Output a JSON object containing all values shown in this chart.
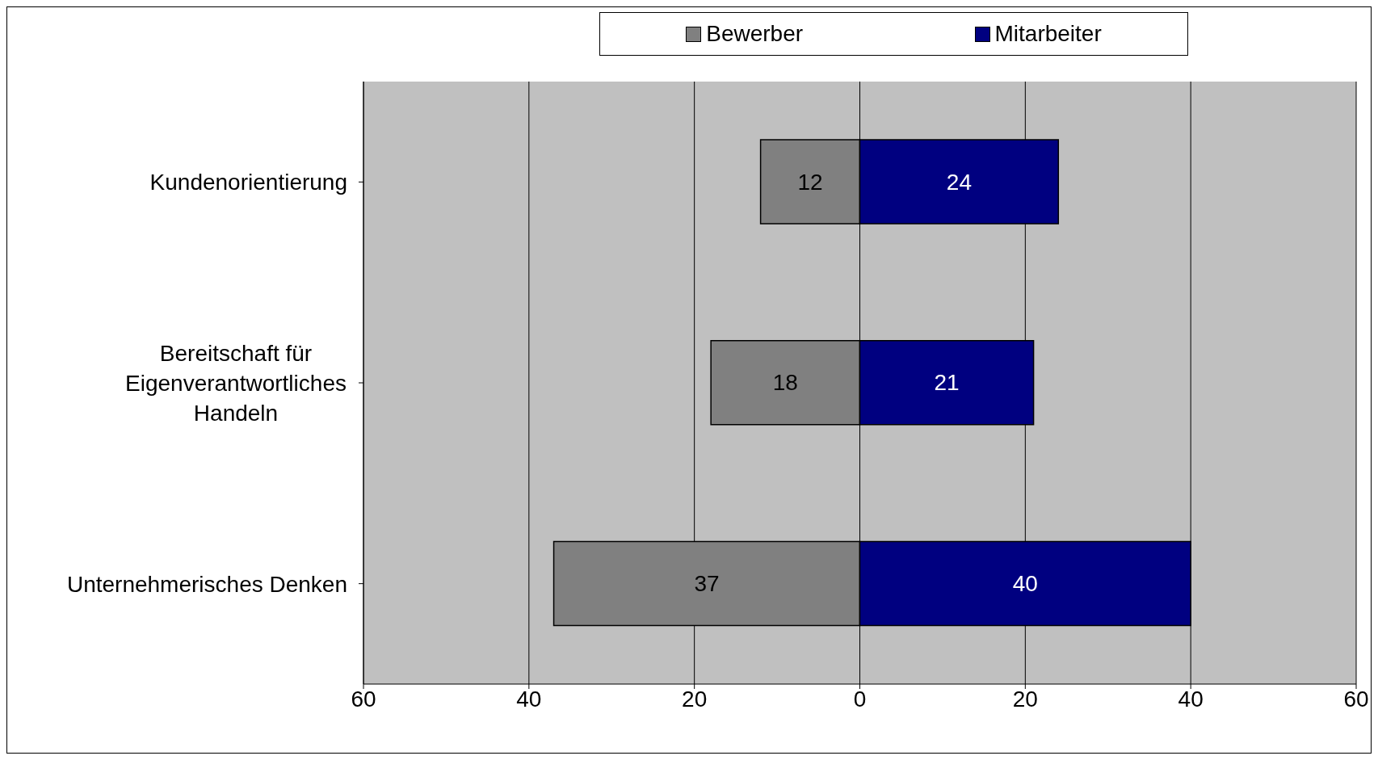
{
  "chart_data": {
    "type": "bar",
    "orientation": "horizontal",
    "categories": [
      "Kundenorientierung",
      "Bereitschaft für Eigenverantwortliches Handeln",
      "Unternehmerisches Denken"
    ],
    "series": [
      {
        "name": "Bewerber",
        "color": "#808080",
        "values": [
          12,
          18,
          37
        ],
        "base": [
          -12,
          -18,
          -37
        ]
      },
      {
        "name": "Mitarbeiter",
        "color": "#000080",
        "values": [
          24,
          21,
          40
        ],
        "base": [
          0,
          0,
          0
        ]
      }
    ],
    "xlim": [
      -60,
      60
    ],
    "xticks": [
      {
        "value": -60,
        "label": "60"
      },
      {
        "value": -40,
        "label": "40"
      },
      {
        "value": -20,
        "label": "20"
      },
      0,
      20,
      40,
      60
    ],
    "data_labels": true,
    "grid": "x",
    "legend": "top"
  }
}
